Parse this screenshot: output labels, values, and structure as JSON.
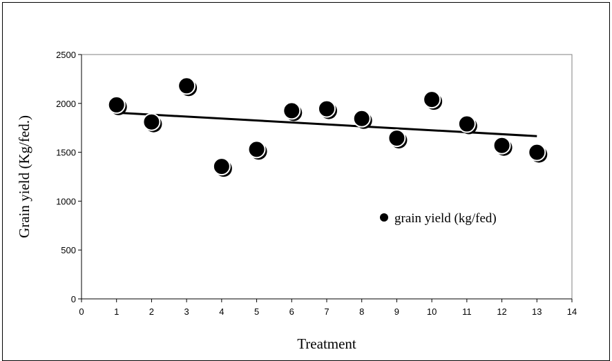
{
  "chart_data": {
    "type": "scatter",
    "title": "",
    "xlabel": "Treatment",
    "ylabel": "Grain yield (Kg/fed.)",
    "xlim": [
      0,
      14
    ],
    "ylim": [
      0,
      2500
    ],
    "xticks": [
      0,
      1,
      2,
      3,
      4,
      5,
      6,
      7,
      8,
      9,
      10,
      11,
      12,
      13,
      14
    ],
    "yticks": [
      0,
      500,
      1000,
      1500,
      2000,
      2500
    ],
    "grid": false,
    "legend_position": "center-right",
    "series": [
      {
        "name": "grain yield (kg/fed)",
        "color": "#000000",
        "x": [
          1,
          2,
          3,
          4,
          5,
          6,
          7,
          8,
          9,
          10,
          11,
          12,
          13
        ],
        "y": [
          1985,
          1810,
          2180,
          1355,
          1530,
          1925,
          1945,
          1845,
          1645,
          2040,
          1790,
          1570,
          1500
        ]
      }
    ],
    "trendline": {
      "type": "linear",
      "x": [
        1,
        13
      ],
      "y": [
        1905,
        1665
      ]
    }
  }
}
